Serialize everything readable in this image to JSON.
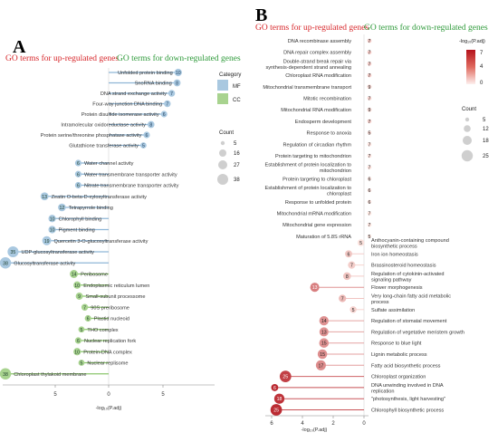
{
  "panel_a": {
    "letter": "A",
    "title_up": "GO terms for up-regulated genes",
    "title_down": "GO terms for down-regulated genes",
    "xlabel": "-log₁₀(P.adj)",
    "legend_category_title": "Category",
    "legend_category_items": [
      "MF",
      "CC"
    ],
    "legend_count_title": "Count",
    "legend_count_values": [
      "5",
      "16",
      "27",
      "38"
    ],
    "colors": {
      "MF": "#a9c8e0",
      "CC": "#a8d38f",
      "MF_line": "#8fb6d6",
      "CC_line": "#8cc66e",
      "up": "#d7262a",
      "down": "#2e9a3a"
    }
  },
  "panel_b": {
    "letter": "B",
    "title_up": "GO terms for up-regulated genes",
    "title_down": "GO terms for down-regulated genes",
    "xlabel": "-log₁₀(P.adj)",
    "legend_color_title": "-log₁₀(P.adj)",
    "legend_color_ticks": [
      "7",
      "4",
      "0"
    ],
    "legend_count_title": "Count",
    "legend_count_values": [
      "5",
      "12",
      "18",
      "25"
    ],
    "colors": {
      "high": "#b5121b",
      "low": "#fbe3e0",
      "up": "#d7262a",
      "down": "#2e9a3a"
    }
  },
  "chart_data": [
    {
      "type": "scatter",
      "variant": "mirrored-lollipop",
      "panel": "A",
      "title": "GO terms for up-regulated genes / GO terms for down-regulated genes",
      "xlabel": "-log₁₀(P.adj)",
      "xticks": [
        "5",
        "0",
        "5"
      ],
      "xlim_left": [
        0,
        10
      ],
      "xlim_right": [
        0,
        10
      ],
      "legend_position": "right",
      "grid": false,
      "up_regulated": [
        {
          "term": "Unfolded protein binding",
          "count": 10,
          "value": 6.4,
          "category": "MF"
        },
        {
          "term": "SnoRNA binding",
          "count": 8,
          "value": 6.3,
          "category": "MF"
        },
        {
          "term": "DNA strand exchange activity",
          "count": 7,
          "value": 5.8,
          "category": "MF"
        },
        {
          "term": "Four-way junction DNA binding",
          "count": 7,
          "value": 5.4,
          "category": "MF"
        },
        {
          "term": "Protein disulfide isomerase activity",
          "count": 6,
          "value": 5.1,
          "category": "MF"
        },
        {
          "term": "Intramolecular oxidoreductase activity",
          "count": 8,
          "value": 3.9,
          "category": "MF"
        },
        {
          "term": "Protein serine/threonine phosphatase activity",
          "count": 6,
          "value": 3.5,
          "category": "MF"
        },
        {
          "term": "Glutathione transferase activity",
          "count": 5,
          "value": 3.2,
          "category": "MF"
        }
      ],
      "down_regulated": [
        {
          "term": "Water channel activity",
          "count": 6,
          "value": 2.8,
          "category": "MF"
        },
        {
          "term": "Water transmembrane transporter activity",
          "count": 6,
          "value": 2.8,
          "category": "MF"
        },
        {
          "term": "Nitrate transmembrane transporter activity",
          "count": 6,
          "value": 2.8,
          "category": "MF"
        },
        {
          "term": "Zeatin O-beta-D-xylosyltransferase activity",
          "count": 13,
          "value": 5.9,
          "category": "MF"
        },
        {
          "term": "Tetrapyrrole binding",
          "count": 12,
          "value": 4.3,
          "category": "MF"
        },
        {
          "term": "Chlorophyll binding",
          "count": 10,
          "value": 5.2,
          "category": "MF"
        },
        {
          "term": "Pigment binding",
          "count": 10,
          "value": 5.2,
          "category": "MF"
        },
        {
          "term": "Quercetin 3-O-glucosyltransferase activity",
          "count": 19,
          "value": 5.7,
          "category": "MF"
        },
        {
          "term": "UDP-glucosyltransferase activity",
          "count": 35,
          "value": 8.8,
          "category": "MF"
        },
        {
          "term": "Glucosyltransferase activity",
          "count": 38,
          "value": 9.5,
          "category": "MF"
        },
        {
          "term": "Peribosome",
          "count": 14,
          "value": 3.2,
          "category": "CC"
        },
        {
          "term": "Endoplasmic reticulum lumen",
          "count": 10,
          "value": 2.9,
          "category": "CC"
        },
        {
          "term": "Small-subunit processome",
          "count": 9,
          "value": 2.7,
          "category": "CC"
        },
        {
          "term": "90S preribosome",
          "count": 7,
          "value": 2.2,
          "category": "CC"
        },
        {
          "term": "Plastid nucleoid",
          "count": 6,
          "value": 1.9,
          "category": "CC"
        },
        {
          "term": "THO complex",
          "count": 5,
          "value": 2.5,
          "category": "CC"
        },
        {
          "term": "Nuclear replication fork",
          "count": 6,
          "value": 2.8,
          "category": "CC"
        },
        {
          "term": "Protein-DNA complex",
          "count": 10,
          "value": 2.9,
          "category": "CC"
        },
        {
          "term": "Nuclear replisome",
          "count": 5,
          "value": 2.5,
          "category": "CC"
        },
        {
          "term": "Chloroplast thylakoid membrane",
          "count": 38,
          "value": 9.5,
          "category": "CC"
        }
      ]
    },
    {
      "type": "scatter",
      "variant": "lollipop",
      "panel": "B",
      "title": "GO terms for up-regulated genes / GO terms for down-regulated genes",
      "xlabel": "-log₁₀(P.adj)",
      "xticks": [
        "6",
        "4",
        "2",
        "0"
      ],
      "xlim": [
        6,
        0
      ],
      "legend_position": "right",
      "grid": false,
      "up_regulated": [
        {
          "term": "DNA recombinase assembly",
          "count": 7,
          "value": 1.0
        },
        {
          "term": "DNA repair complex assembly",
          "count": 7,
          "value": 1.0
        },
        {
          "term": "Double-strand break repair via synthesis-dependent strand annealing",
          "count": 7,
          "value": 0.9
        },
        {
          "term": "Chloroplast RNA modification",
          "count": 7,
          "value": 0.9
        },
        {
          "term": "Mitochondrial transmembrane transport",
          "count": 9,
          "value": 0.5
        },
        {
          "term": "Mitotic recombination",
          "count": 7,
          "value": 0.7
        },
        {
          "term": "Mitochondrial RNA modification",
          "count": 9,
          "value": 0.4
        },
        {
          "term": "Endosperm development",
          "count": 7,
          "value": 0.8
        },
        {
          "term": "Response to anoxia",
          "count": 5,
          "value": 0.5
        },
        {
          "term": "Regulation of circadian rhythm",
          "count": 7,
          "value": 0.2
        },
        {
          "term": "Protein targeting to mitochondrion",
          "count": 7,
          "value": 0.2
        },
        {
          "term": "Establishment of protein localization to mitochondrion",
          "count": 7,
          "value": 0.2
        },
        {
          "term": "Protein targeting to chloroplast",
          "count": 6,
          "value": 0.2
        },
        {
          "term": "Establishment of protein localization to chloroplast",
          "count": 6,
          "value": 0.2
        },
        {
          "term": "Response to unfolded protein",
          "count": 6,
          "value": 0.2
        },
        {
          "term": "Mitochondrial mRNA modification",
          "count": 7,
          "value": 0.1
        },
        {
          "term": "Mitochondrial gene expression",
          "count": 7,
          "value": 0.1
        },
        {
          "term": "Maturation of 5.8S rRNA",
          "count": 5,
          "value": 0.1
        }
      ],
      "down_regulated": [
        {
          "term": "Anthocyanin-containing compound biosynthetic process",
          "count": 5,
          "value": 0.2
        },
        {
          "term": "Iron ion homeostasis",
          "count": 6,
          "value": 1.0
        },
        {
          "term": "Brassinosteroid homeostasis",
          "count": 7,
          "value": 0.8
        },
        {
          "term": "Regulation of cytokinin-activated signaling pathway",
          "count": 8,
          "value": 1.1
        },
        {
          "term": "Flower morphogenesis",
          "count": 13,
          "value": 3.2
        },
        {
          "term": "Very long-chain fatty acid metabolic process",
          "count": 7,
          "value": 1.4
        },
        {
          "term": "Sulfate assimilation",
          "count": 5,
          "value": 0.7
        },
        {
          "term": "Regulation of stomatal movement",
          "count": 14,
          "value": 2.6
        },
        {
          "term": "Regulation of vegetative meristem growth",
          "count": 13,
          "value": 2.6
        },
        {
          "term": "Response to blue light",
          "count": 15,
          "value": 2.6
        },
        {
          "term": "Lignin metabolic process",
          "count": 15,
          "value": 2.7
        },
        {
          "term": "Fatty acid biosynthetic process",
          "count": 17,
          "value": 2.8
        },
        {
          "term": "Chloroplast organization",
          "count": 25,
          "value": 5.1
        },
        {
          "term": "DNA unwinding involved in DNA replication",
          "count": 6,
          "value": 5.8
        },
        {
          "term": "\"photosynthesis, light harvesting\"",
          "count": 18,
          "value": 5.5
        },
        {
          "term": "Chlorophyll biosynthetic process",
          "count": 25,
          "value": 5.7
        }
      ]
    }
  ]
}
